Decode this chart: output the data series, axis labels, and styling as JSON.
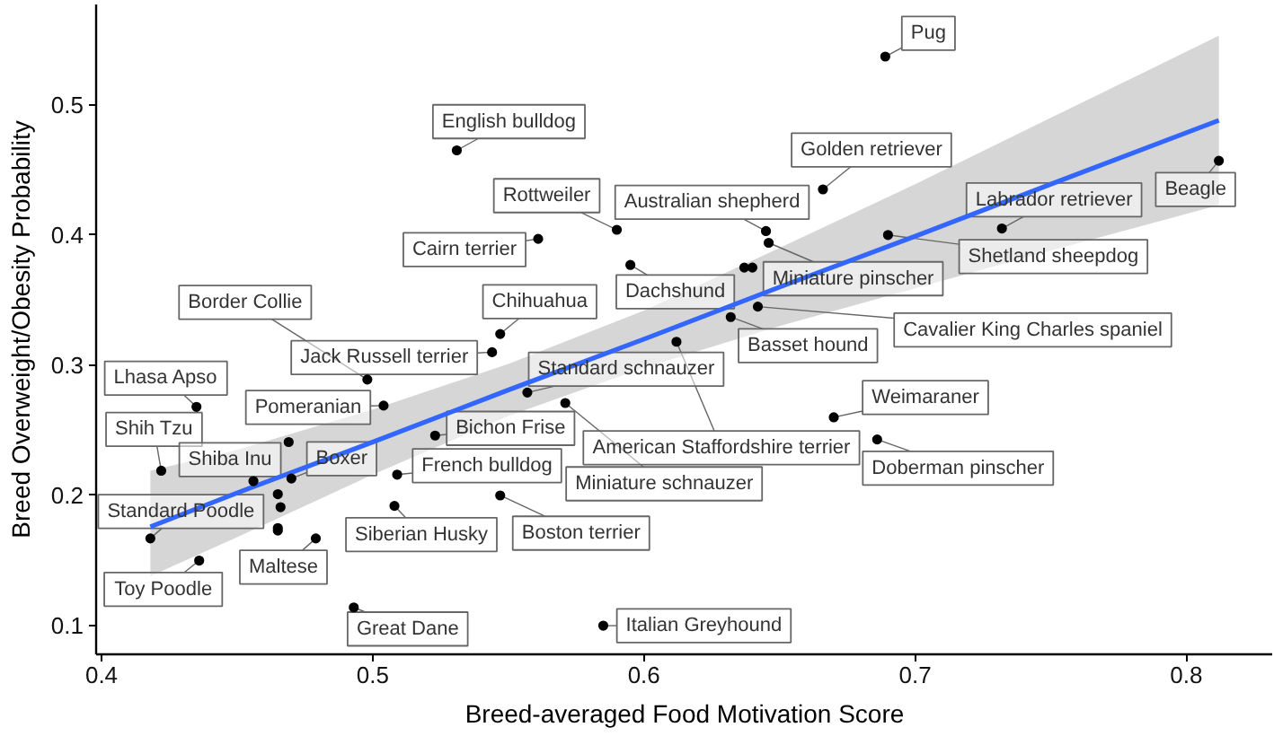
{
  "chart_data": {
    "type": "scatter",
    "xlabel": "Breed-averaged Food Motivation Score",
    "ylabel": "Breed Overweight/Obesity Probability",
    "xlim": [
      0.398,
      0.832
    ],
    "ylim": [
      0.078,
      0.577
    ],
    "xticks": [
      0.4,
      0.5,
      0.6,
      0.7,
      0.8
    ],
    "yticks": [
      0.1,
      0.2,
      0.3,
      0.4,
      0.5
    ],
    "series": [
      {
        "type": "line",
        "color": "#3366ff",
        "x": [
          0.418,
          0.45,
          0.5,
          0.55,
          0.6,
          0.65,
          0.7,
          0.75,
          0.812
        ],
        "values": [
          0.176,
          0.202,
          0.241,
          0.281,
          0.32,
          0.36,
          0.399,
          0.439,
          0.488
        ],
        "lower": [
          0.138,
          0.168,
          0.216,
          0.261,
          0.298,
          0.33,
          0.359,
          0.388,
          0.423
        ],
        "upper": [
          0.219,
          0.235,
          0.266,
          0.301,
          0.342,
          0.39,
          0.439,
          0.49,
          0.553
        ]
      },
      {
        "marker": "circle",
        "color": "#000000",
        "x": [
          0.689,
          0.531,
          0.666,
          0.59,
          0.645,
          0.732,
          0.812,
          0.561,
          0.595,
          0.646,
          0.69,
          0.498,
          0.547,
          0.642,
          0.544,
          0.632,
          0.557,
          0.571,
          0.612,
          0.67,
          0.686,
          0.504,
          0.435,
          0.523,
          0.422,
          0.456,
          0.47,
          0.509,
          0.418,
          0.547,
          0.508,
          0.479,
          0.436,
          0.493,
          0.585,
          0.637,
          0.64,
          0.469,
          0.465,
          0.466,
          0.465,
          0.465
        ],
        "values": [
          0.537,
          0.465,
          0.435,
          0.404,
          0.403,
          0.405,
          0.457,
          0.397,
          0.377,
          0.394,
          0.4,
          0.289,
          0.324,
          0.345,
          0.31,
          0.337,
          0.279,
          0.271,
          0.318,
          0.26,
          0.243,
          0.269,
          0.268,
          0.246,
          0.219,
          0.211,
          0.213,
          0.216,
          0.167,
          0.2,
          0.192,
          0.167,
          0.15,
          0.114,
          0.1,
          0.375,
          0.375,
          0.241,
          0.201,
          0.191,
          0.175,
          0.173
        ]
      }
    ],
    "annotations": [
      {
        "text": "Pug",
        "x": 0.689,
        "y": 0.537
      },
      {
        "text": "English bulldog",
        "x": 0.531,
        "y": 0.465
      },
      {
        "text": "Golden retriever",
        "x": 0.666,
        "y": 0.435
      },
      {
        "text": "Rottweiler",
        "x": 0.59,
        "y": 0.404
      },
      {
        "text": "Australian shepherd",
        "x": 0.645,
        "y": 0.403
      },
      {
        "text": "Labrador retriever",
        "x": 0.732,
        "y": 0.405
      },
      {
        "text": "Beagle",
        "x": 0.812,
        "y": 0.457
      },
      {
        "text": "Cairn terrier",
        "x": 0.561,
        "y": 0.397
      },
      {
        "text": "Dachshund",
        "x": 0.595,
        "y": 0.377
      },
      {
        "text": "Miniature pinscher",
        "x": 0.646,
        "y": 0.394
      },
      {
        "text": "Shetland sheepdog",
        "x": 0.69,
        "y": 0.4
      },
      {
        "text": "Border Collie",
        "x": 0.498,
        "y": 0.289
      },
      {
        "text": "Chihuahua",
        "x": 0.547,
        "y": 0.324
      },
      {
        "text": "Cavalier King Charles spaniel",
        "x": 0.642,
        "y": 0.345
      },
      {
        "text": "Jack Russell terrier",
        "x": 0.544,
        "y": 0.31
      },
      {
        "text": "Basset hound",
        "x": 0.632,
        "y": 0.337
      },
      {
        "text": "Standard schnauzer",
        "x": 0.557,
        "y": 0.279
      },
      {
        "text": "Miniature schnauzer",
        "x": 0.571,
        "y": 0.271
      },
      {
        "text": "American Staffordshire terrier",
        "x": 0.612,
        "y": 0.318
      },
      {
        "text": "Weimaraner",
        "x": 0.67,
        "y": 0.26
      },
      {
        "text": "Doberman pinscher",
        "x": 0.686,
        "y": 0.243
      },
      {
        "text": "Pomeranian",
        "x": 0.504,
        "y": 0.269
      },
      {
        "text": "Lhasa Apso",
        "x": 0.435,
        "y": 0.268
      },
      {
        "text": "Bichon Frise",
        "x": 0.523,
        "y": 0.246
      },
      {
        "text": "Shih Tzu",
        "x": 0.422,
        "y": 0.219
      },
      {
        "text": "Shiba Inu",
        "x": 0.456,
        "y": 0.211
      },
      {
        "text": "Boxer",
        "x": 0.47,
        "y": 0.213
      },
      {
        "text": "French bulldog",
        "x": 0.509,
        "y": 0.216
      },
      {
        "text": "Standard Poodle",
        "x": 0.418,
        "y": 0.167
      },
      {
        "text": "Boston terrier",
        "x": 0.547,
        "y": 0.2
      },
      {
        "text": "Siberian Husky",
        "x": 0.508,
        "y": 0.192
      },
      {
        "text": "Maltese",
        "x": 0.479,
        "y": 0.167
      },
      {
        "text": "Toy Poodle",
        "x": 0.436,
        "y": 0.15
      },
      {
        "text": "Great Dane",
        "x": 0.493,
        "y": 0.114
      },
      {
        "text": "Italian Greyhound",
        "x": 0.585,
        "y": 0.1
      }
    ]
  }
}
